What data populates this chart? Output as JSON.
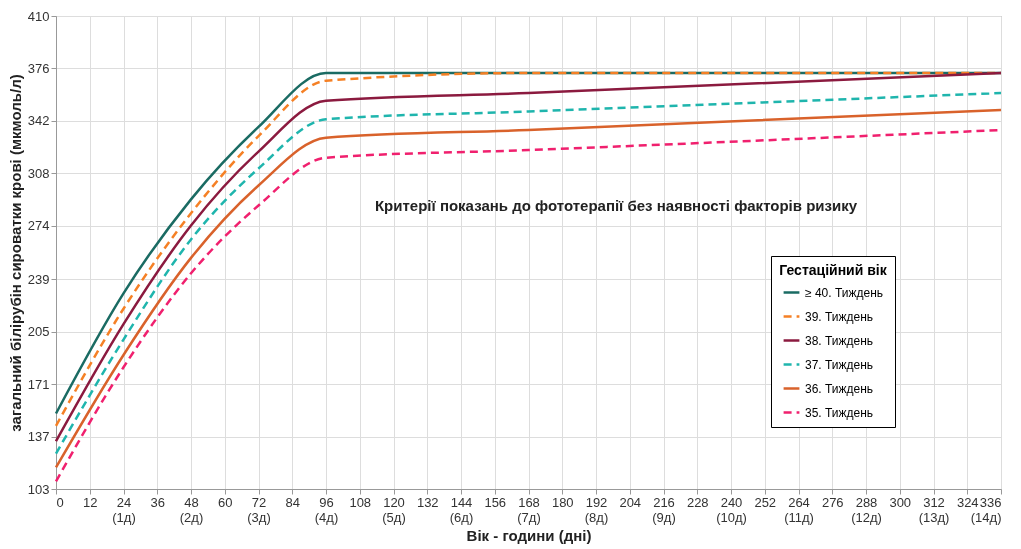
{
  "chart_data": {
    "type": "line",
    "xlabel": "Вік - години (дні)",
    "ylabel": "загальний білірубін сироватки крові (мкмоль/л)",
    "legend_title": "Гестаційний вік",
    "annotations": [
      "Критерії показань до фототерапії без наявності факторів ризику"
    ],
    "x": [
      0,
      24,
      48,
      72,
      96,
      168,
      336
    ],
    "series": [
      {
        "name": "≥ 40. Тиждень",
        "color": "#1a6b63",
        "line_style": "solid",
        "values": [
          152,
          230,
          291,
          338,
          373,
          373,
          373
        ]
      },
      {
        "name": "39. Тиждень",
        "color": "#f58025",
        "line_style": "dashed",
        "values": [
          144,
          220,
          282,
          332,
          368,
          373,
          373
        ]
      },
      {
        "name": "38. Тиждень",
        "color": "#8b1a3f",
        "line_style": "solid",
        "values": [
          134,
          210,
          274,
          322,
          355,
          360,
          373
        ]
      },
      {
        "name": "37. Тиждень",
        "color": "#1fb5ad",
        "line_style": "dashed",
        "values": [
          126,
          200,
          265,
          311,
          343,
          348,
          360
        ]
      },
      {
        "name": "36. Тиждень",
        "color": "#d9622b",
        "line_style": "solid",
        "values": [
          117,
          190,
          253,
          300,
          331,
          336,
          349
        ]
      },
      {
        "name": "35. Тиждень",
        "color": "#f0206e",
        "line_style": "dashed",
        "values": [
          108,
          182,
          243,
          287,
          318,
          323,
          336
        ]
      }
    ],
    "xlim": [
      0,
      336
    ],
    "xticks": [
      0,
      12,
      {
        "value": 24,
        "label": "24\n(1д)"
      },
      36,
      {
        "value": 48,
        "label": "48\n(2д)"
      },
      60,
      {
        "value": 72,
        "label": "72\n(3д)"
      },
      84,
      {
        "value": 96,
        "label": "96\n(4д)"
      },
      108,
      {
        "value": 120,
        "label": "120\n(5д)"
      },
      132,
      {
        "value": 144,
        "label": "144\n(6д)"
      },
      156,
      {
        "value": 168,
        "label": "168\n(7д)"
      },
      180,
      {
        "value": 192,
        "label": "192\n(8д)"
      },
      204,
      {
        "value": 216,
        "label": "216\n(9д)"
      },
      228,
      {
        "value": 240,
        "label": "240\n(10д)"
      },
      252,
      {
        "value": 264,
        "label": "264\n(11д)"
      },
      276,
      {
        "value": 288,
        "label": "288\n(12д)"
      },
      300,
      {
        "value": 312,
        "label": "312\n(13д)"
      },
      324,
      {
        "value": 336,
        "label": "336\n(14д)"
      }
    ],
    "ylim": [
      103,
      410
    ],
    "yticks": [
      103,
      137,
      171,
      205,
      239,
      274,
      308,
      342,
      376,
      410
    ],
    "grid": true,
    "legend": "right",
    "marker": "none"
  }
}
